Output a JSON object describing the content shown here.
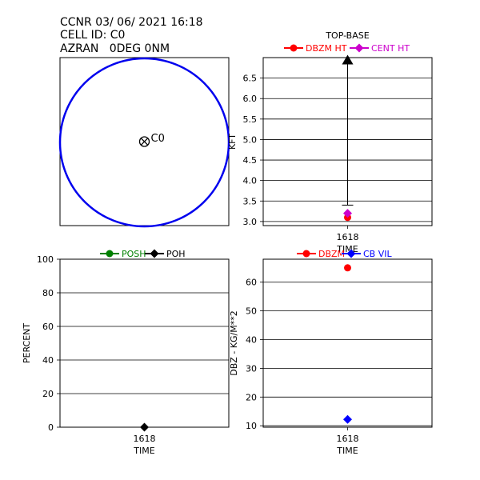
{
  "header": {
    "line1": "CCNR 03/ 06/ 2021 16:18",
    "line2": "CELL ID: C0",
    "line3": "AZRAN   0DEG 0NM"
  },
  "colors": {
    "circle": "#0000ee",
    "dbzm": "#ff0000",
    "cent": "#cc00cc",
    "posh": "#008000",
    "poh": "#000000",
    "cbvil": "#0000ff"
  },
  "chart_data": [
    {
      "type": "polar-position",
      "marker_label": "C0",
      "range_nm": 0,
      "azimuth_deg": 0
    },
    {
      "type": "scatter",
      "title": "TOP-BASE",
      "xlabel": "TIME",
      "ylabel": "KFT",
      "categories": [
        "1618"
      ],
      "ylim": [
        2.9,
        7.0
      ],
      "yticks": [
        3.0,
        3.5,
        4.0,
        4.5,
        5.0,
        5.5,
        6.0,
        6.5
      ],
      "grid": true,
      "legend": "top",
      "series": [
        {
          "name": "DBZM HT",
          "marker": "circle",
          "values": [
            3.1
          ]
        },
        {
          "name": "CENT HT",
          "marker": "diamond",
          "values": [
            3.2
          ]
        }
      ],
      "top_base_bar": {
        "top": 6.95,
        "base": 3.4
      }
    },
    {
      "type": "scatter",
      "xlabel": "TIME",
      "ylabel": "PERCENT",
      "categories": [
        "1618"
      ],
      "ylim": [
        0,
        100
      ],
      "yticks": [
        0,
        20,
        40,
        60,
        80,
        100
      ],
      "grid": true,
      "legend": "top",
      "series": [
        {
          "name": "POSH",
          "marker": "circle",
          "values": [
            null
          ]
        },
        {
          "name": "POH",
          "marker": "diamond",
          "values": [
            0
          ]
        }
      ]
    },
    {
      "type": "scatter",
      "xlabel": "TIME",
      "ylabel": "DBZ - KG/M**2",
      "categories": [
        "1618"
      ],
      "ylim": [
        9.5,
        68
      ],
      "yticks": [
        10,
        20,
        30,
        40,
        50,
        60
      ],
      "grid": true,
      "legend": "top",
      "series": [
        {
          "name": "DBZM",
          "marker": "circle",
          "values": [
            65
          ]
        },
        {
          "name": "CB VIL",
          "marker": "diamond",
          "values": [
            12.2
          ]
        }
      ]
    }
  ]
}
